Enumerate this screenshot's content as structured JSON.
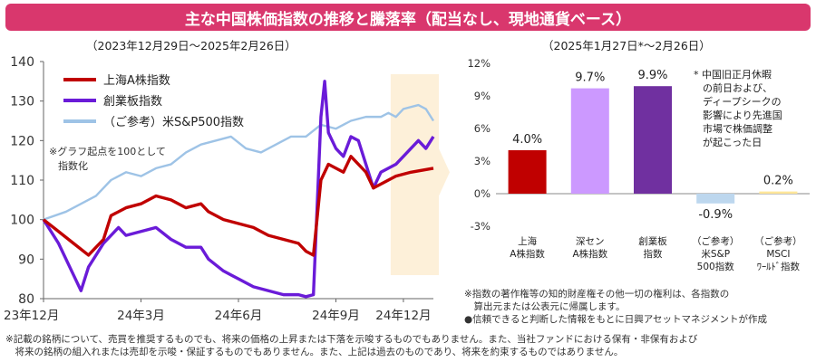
{
  "title": "主な中国株価指数の推移と騰落率（配当なし、現地通貨ベース）",
  "chart_data": [
    {
      "type": "line",
      "subtitle": "（2023年12月29日～2025年2月26日）",
      "ylim": [
        80,
        140
      ],
      "yticks": [
        "80",
        "90",
        "100",
        "110",
        "120",
        "130",
        "140"
      ],
      "xticks": [
        "23年12月",
        "24年3月",
        "24年6月",
        "24年9月",
        "24年12月"
      ],
      "note": "※グラフ起点を100として指数化",
      "legend": [
        "上海A株指数",
        "創業板指数",
        "（ご参考）米S&P500指数"
      ],
      "series": [
        {
          "name": "上海A株指数",
          "color": "#c00000",
          "values": [
            [
              0,
              100
            ],
            [
              2,
              97
            ],
            [
              4,
              94
            ],
            [
              6,
              91
            ],
            [
              8,
              95
            ],
            [
              9,
              101
            ],
            [
              11,
              103
            ],
            [
              13,
              104
            ],
            [
              15,
              106
            ],
            [
              17,
              105
            ],
            [
              19,
              103
            ],
            [
              21,
              104
            ],
            [
              22,
              102
            ],
            [
              24,
              100
            ],
            [
              26,
              99
            ],
            [
              28,
              98
            ],
            [
              30,
              96
            ],
            [
              32,
              95
            ],
            [
              34,
              94
            ],
            [
              35,
              92
            ],
            [
              36,
              91
            ],
            [
              37,
              110
            ],
            [
              38,
              114
            ],
            [
              40,
              112
            ],
            [
              41,
              116
            ],
            [
              43,
              112
            ],
            [
              44,
              108
            ],
            [
              45,
              109
            ],
            [
              47,
              111
            ],
            [
              49,
              112
            ],
            [
              52,
              113
            ]
          ]
        },
        {
          "name": "創業板指数",
          "color": "#6a1bd8",
          "values": [
            [
              0,
              100
            ],
            [
              2,
              94
            ],
            [
              4,
              86
            ],
            [
              5,
              82
            ],
            [
              6,
              88
            ],
            [
              8,
              94
            ],
            [
              10,
              98
            ],
            [
              11,
              96
            ],
            [
              13,
              97
            ],
            [
              15,
              98
            ],
            [
              17,
              95
            ],
            [
              19,
              93
            ],
            [
              21,
              93
            ],
            [
              22,
              90
            ],
            [
              24,
              87
            ],
            [
              26,
              85
            ],
            [
              28,
              83
            ],
            [
              30,
              82
            ],
            [
              32,
              81
            ],
            [
              34,
              81
            ],
            [
              35,
              80.5
            ],
            [
              36,
              81
            ],
            [
              37,
              126
            ],
            [
              37.5,
              135
            ],
            [
              38,
              122
            ],
            [
              39,
              118
            ],
            [
              40,
              116
            ],
            [
              41,
              121
            ],
            [
              42,
              120
            ],
            [
              43,
              114
            ],
            [
              44,
              108
            ],
            [
              45,
              112
            ],
            [
              47,
              114
            ],
            [
              49,
              118
            ],
            [
              50,
              120
            ],
            [
              51,
              118
            ],
            [
              52,
              121
            ]
          ]
        },
        {
          "name": "（ご参考）米S&P500指数",
          "color": "#9ec3e6",
          "values": [
            [
              0,
              100
            ],
            [
              3,
              102
            ],
            [
              5,
              104
            ],
            [
              7,
              106
            ],
            [
              9,
              110
            ],
            [
              11,
              112
            ],
            [
              13,
              111
            ],
            [
              15,
              113
            ],
            [
              17,
              114
            ],
            [
              19,
              117
            ],
            [
              21,
              119
            ],
            [
              23,
              120
            ],
            [
              25,
              121
            ],
            [
              27,
              118
            ],
            [
              29,
              117
            ],
            [
              31,
              119
            ],
            [
              33,
              121
            ],
            [
              35,
              121
            ],
            [
              37,
              124
            ],
            [
              39,
              123
            ],
            [
              41,
              125
            ],
            [
              43,
              126
            ],
            [
              45,
              126
            ],
            [
              46,
              127
            ],
            [
              47,
              126
            ],
            [
              48,
              128
            ],
            [
              50,
              129
            ],
            [
              51,
              128
            ],
            [
              52,
              125
            ]
          ]
        }
      ]
    },
    {
      "type": "bar",
      "subtitle": "（2025年1月27日*～2月26日）",
      "ylim": [
        -3,
        12
      ],
      "yticks": [
        "-3%",
        "0%",
        "3%",
        "6%",
        "9%",
        "12%"
      ],
      "categories": [
        "上海\nA株指数",
        "深セン\nA株指数",
        "創業板\n指数",
        "（ご参考）\n米S&P\n500指数",
        "（ご参考）\nMSCI\nﾜｰﾙﾄﾞ指数"
      ],
      "values": [
        4.0,
        9.7,
        9.9,
        -0.9,
        0.2
      ],
      "labels": [
        "4.0%",
        "9.7%",
        "9.9%",
        "-0.9%",
        "0.2%"
      ],
      "colors": [
        "#c00000",
        "#cc99ff",
        "#7030a0",
        "#bdd7ee",
        "#ffe699"
      ],
      "note": "* 中国旧正月休暇\nの前日および、\nディープシークの\n影響により先進国\n市場で株価調整\nが起こった日"
    }
  ],
  "notes": {
    "right1": "※指数の著作権等の知的財産権その他一切の権利は、各指数の\n　算出元または公表元に帰属します。",
    "right2": "●信頼できると判断した情報をもとに日興アセットマネジメントが作成",
    "footer1": "※記載の銘柄について、売買を推奨するものでも、将来の価格の上昇または下落を示唆するものでもありません。また、当社ファンドにおける保有・非保有および",
    "footer2": "　将来の銘柄の組入れまたは売却を示唆・保証するものでもありません。また、上記は過去のものであり、将来を約束するものではありません。"
  }
}
